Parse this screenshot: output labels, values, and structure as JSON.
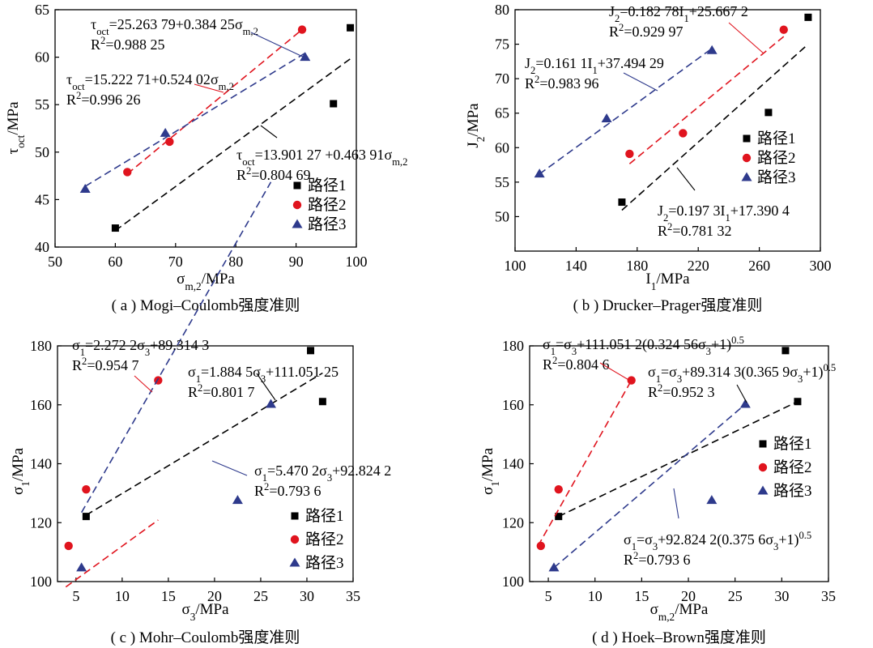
{
  "colors": {
    "path1": "#000000",
    "path2": "#e0141e",
    "path3": "#2e3a8c"
  },
  "chart_data": [
    {
      "type": "scatter",
      "panel": "a",
      "caption": "( a ) Mogi–Coulomb强度准则",
      "xlabel": "σm,2/MPa",
      "ylabel": "τoct/MPa",
      "xlim": [
        50,
        100
      ],
      "ylim": [
        40,
        65
      ],
      "xticks": [
        50,
        60,
        70,
        80,
        90,
        100
      ],
      "yticks": [
        40,
        45,
        50,
        55,
        60,
        65
      ],
      "legend_position": "bottom-right",
      "series": [
        {
          "name": "路径1",
          "marker": "square",
          "color": "#000000",
          "points": [
            [
              60,
              42
            ],
            [
              96.2,
              55.1
            ],
            [
              99,
              63.1
            ]
          ],
          "fit_x": [
            60,
            99
          ],
          "fit": {
            "intercept": 13.90127,
            "slope": 0.46391
          }
        },
        {
          "name": "路径2",
          "marker": "circle",
          "color": "#e0141e",
          "points": [
            [
              62,
              47.9
            ],
            [
              69,
              51.1
            ],
            [
              91,
              62.9
            ]
          ],
          "fit_x": [
            62,
            91
          ],
          "fit": {
            "intercept": 15.22271,
            "slope": 0.52402
          }
        },
        {
          "name": "路径3",
          "marker": "triangle",
          "color": "#2e3a8c",
          "points": [
            [
              55,
              46.1
            ],
            [
              68.3,
              52
            ],
            [
              91.5,
              60
            ]
          ],
          "fit_x": [
            55,
            91.5
          ],
          "fit": {
            "intercept": 25.26379,
            "slope": 0.38425
          }
        }
      ],
      "annotations": [
        {
          "lines": [
            {
              "t": "τoct=25.263 79+0.384 25σm,2"
            },
            {
              "t": "R2=0.988 25"
            }
          ]
        },
        {
          "lines": [
            {
              "t": "τoct=15.222 71+0.524 02σm,2"
            },
            {
              "t": "R2=0.996 26"
            }
          ]
        },
        {
          "lines": [
            {
              "t": "τoct=13.901 27 +0.463 91σm,2"
            },
            {
              "t": "R2=0.804 69"
            }
          ]
        }
      ]
    },
    {
      "type": "scatter",
      "panel": "b",
      "caption": "( b ) Drucker–Prager强度准则",
      "xlabel": "I1/MPa",
      "ylabel": "J2/MPa",
      "xlim": [
        100,
        300
      ],
      "ylim": [
        45,
        80
      ],
      "xticks": [
        100,
        140,
        180,
        220,
        260,
        300
      ],
      "yticks": [
        50,
        55,
        60,
        65,
        70,
        75,
        80
      ],
      "legend_position": "right-middle",
      "series": [
        {
          "name": "路径1",
          "marker": "square",
          "color": "#000000",
          "points": [
            [
              170,
              52.1
            ],
            [
              266,
              65.1
            ],
            [
              292,
              78.9
            ]
          ],
          "fit_x": [
            170,
            292
          ],
          "fit": {
            "intercept": 17.3904,
            "slope": 0.1973
          }
        },
        {
          "name": "路径2",
          "marker": "circle",
          "color": "#e0141e",
          "points": [
            [
              175,
              59.1
            ],
            [
              210,
              62.1
            ],
            [
              276,
              77.1
            ]
          ],
          "fit_x": [
            175,
            276
          ],
          "fit": {
            "intercept": 25.6672,
            "slope": 0.18278
          }
        },
        {
          "name": "路径3",
          "marker": "triangle",
          "color": "#2e3a8c",
          "points": [
            [
              116,
              56.2
            ],
            [
              160,
              64.2
            ],
            [
              229,
              74.1
            ]
          ],
          "fit_x": [
            116,
            229
          ],
          "fit": {
            "intercept": 37.49429,
            "slope": 0.1611
          }
        }
      ],
      "annotations": [
        {
          "lines": [
            {
              "t": "J2=0.182 78I1+25.667 2"
            },
            {
              "t": "R2=0.929 97"
            }
          ]
        },
        {
          "lines": [
            {
              "t": "J2=0.161 1I1+37.494 29"
            },
            {
              "t": "R2=0.983 96"
            }
          ]
        },
        {
          "lines": [
            {
              "t": "J2=0.197 3I1+17.390 4"
            },
            {
              "t": "R2=0.781 32"
            }
          ]
        }
      ]
    },
    {
      "type": "scatter",
      "panel": "c",
      "caption": "( c ) Mohr–Coulomb强度准则",
      "xlabel": "σ3/MPa",
      "ylabel": "σ1/MPa",
      "xlim": [
        3,
        35
      ],
      "ylim": [
        100,
        180
      ],
      "xticks": [
        5,
        10,
        15,
        20,
        25,
        30,
        35
      ],
      "yticks": [
        100,
        120,
        140,
        160,
        180
      ],
      "legend_position": "bottom-right",
      "series": [
        {
          "name": "路径1",
          "marker": "square",
          "color": "#000000",
          "points": [
            [
              6.1,
              122.1
            ],
            [
              30.4,
              178.4
            ],
            [
              31.7,
              161.1
            ]
          ],
          "fit_x": [
            6.1,
            31.7
          ],
          "fit": {
            "intercept": 111.05125,
            "slope": 1.8845
          }
        },
        {
          "name": "路径2",
          "marker": "circle",
          "color": "#e0141e",
          "points": [
            [
              4.2,
              112.1
            ],
            [
              6.1,
              131.3
            ],
            [
              13.9,
              168.3
            ]
          ],
          "fit_x": [
            3.9,
            13.9
          ],
          "fit": {
            "intercept": 89.3143,
            "slope": 2.2722
          }
        },
        {
          "name": "路径3",
          "marker": "triangle",
          "color": "#2e3a8c",
          "points": [
            [
              5.6,
              104.7
            ],
            [
              22.5,
              127.6
            ],
            [
              26.1,
              160.2
            ]
          ],
          "fit_x": [
            5.6,
            26.1
          ],
          "fit": {
            "intercept": 92.8242,
            "slope": 5.4702
          }
        }
      ],
      "annotations": [
        {
          "lines": [
            {
              "t": "σ1=2.272 2σ3+89.314 3"
            },
            {
              "t": "R2=0.954 7"
            }
          ]
        },
        {
          "lines": [
            {
              "t": "σ1=1.884 5σ3+111.051 25"
            },
            {
              "t": "R2=0.801 7"
            }
          ]
        },
        {
          "lines": [
            {
              "t": "σ1=5.470 2σ3+92.824 2"
            },
            {
              "t": "R2=0.793 6"
            }
          ]
        }
      ]
    },
    {
      "type": "scatter",
      "panel": "d",
      "caption": "( d ) Hoek–Brown强度准则",
      "xlabel": "σm,2/MPa",
      "ylabel": "σ1/MPa",
      "xlim": [
        3,
        35
      ],
      "ylim": [
        100,
        180
      ],
      "xticks": [
        5,
        10,
        15,
        20,
        25,
        30,
        35
      ],
      "yticks": [
        100,
        120,
        140,
        160,
        180
      ],
      "legend_position": "right-middle",
      "series": [
        {
          "name": "路径1",
          "marker": "square",
          "color": "#000000",
          "points": [
            [
              6.1,
              122.1
            ],
            [
              30.4,
              178.4
            ],
            [
              31.7,
              161.1
            ]
          ],
          "fit_x": [
            6.1,
            31.7
          ]
        },
        {
          "name": "路径2",
          "marker": "circle",
          "color": "#e0141e",
          "points": [
            [
              4.2,
              112.1
            ],
            [
              6.1,
              131.3
            ],
            [
              13.9,
              168.3
            ]
          ],
          "fit_x": [
            3.9,
            13.9
          ]
        },
        {
          "name": "路径3",
          "marker": "triangle",
          "color": "#2e3a8c",
          "points": [
            [
              5.6,
              104.7
            ],
            [
              22.5,
              127.6
            ],
            [
              26.1,
              160.2
            ]
          ],
          "fit_x": [
            5.6,
            26.1
          ]
        }
      ],
      "annotations": [
        {
          "lines": [
            {
              "t": "σ1=σ3+111.051 2(0.324 56σ3+1)0.5"
            },
            {
              "t": "R2=0.804 6"
            }
          ]
        },
        {
          "lines": [
            {
              "t": "σ1=σ3+89.314 3(0.365 9σ3+1)0.5"
            },
            {
              "t": "R2=0.952 3"
            }
          ]
        },
        {
          "lines": [
            {
              "t": "σ1=σ3+92.824 2(0.375 6σ3+1)0.5"
            },
            {
              "t": "R2=0.793 6"
            }
          ]
        }
      ]
    }
  ]
}
